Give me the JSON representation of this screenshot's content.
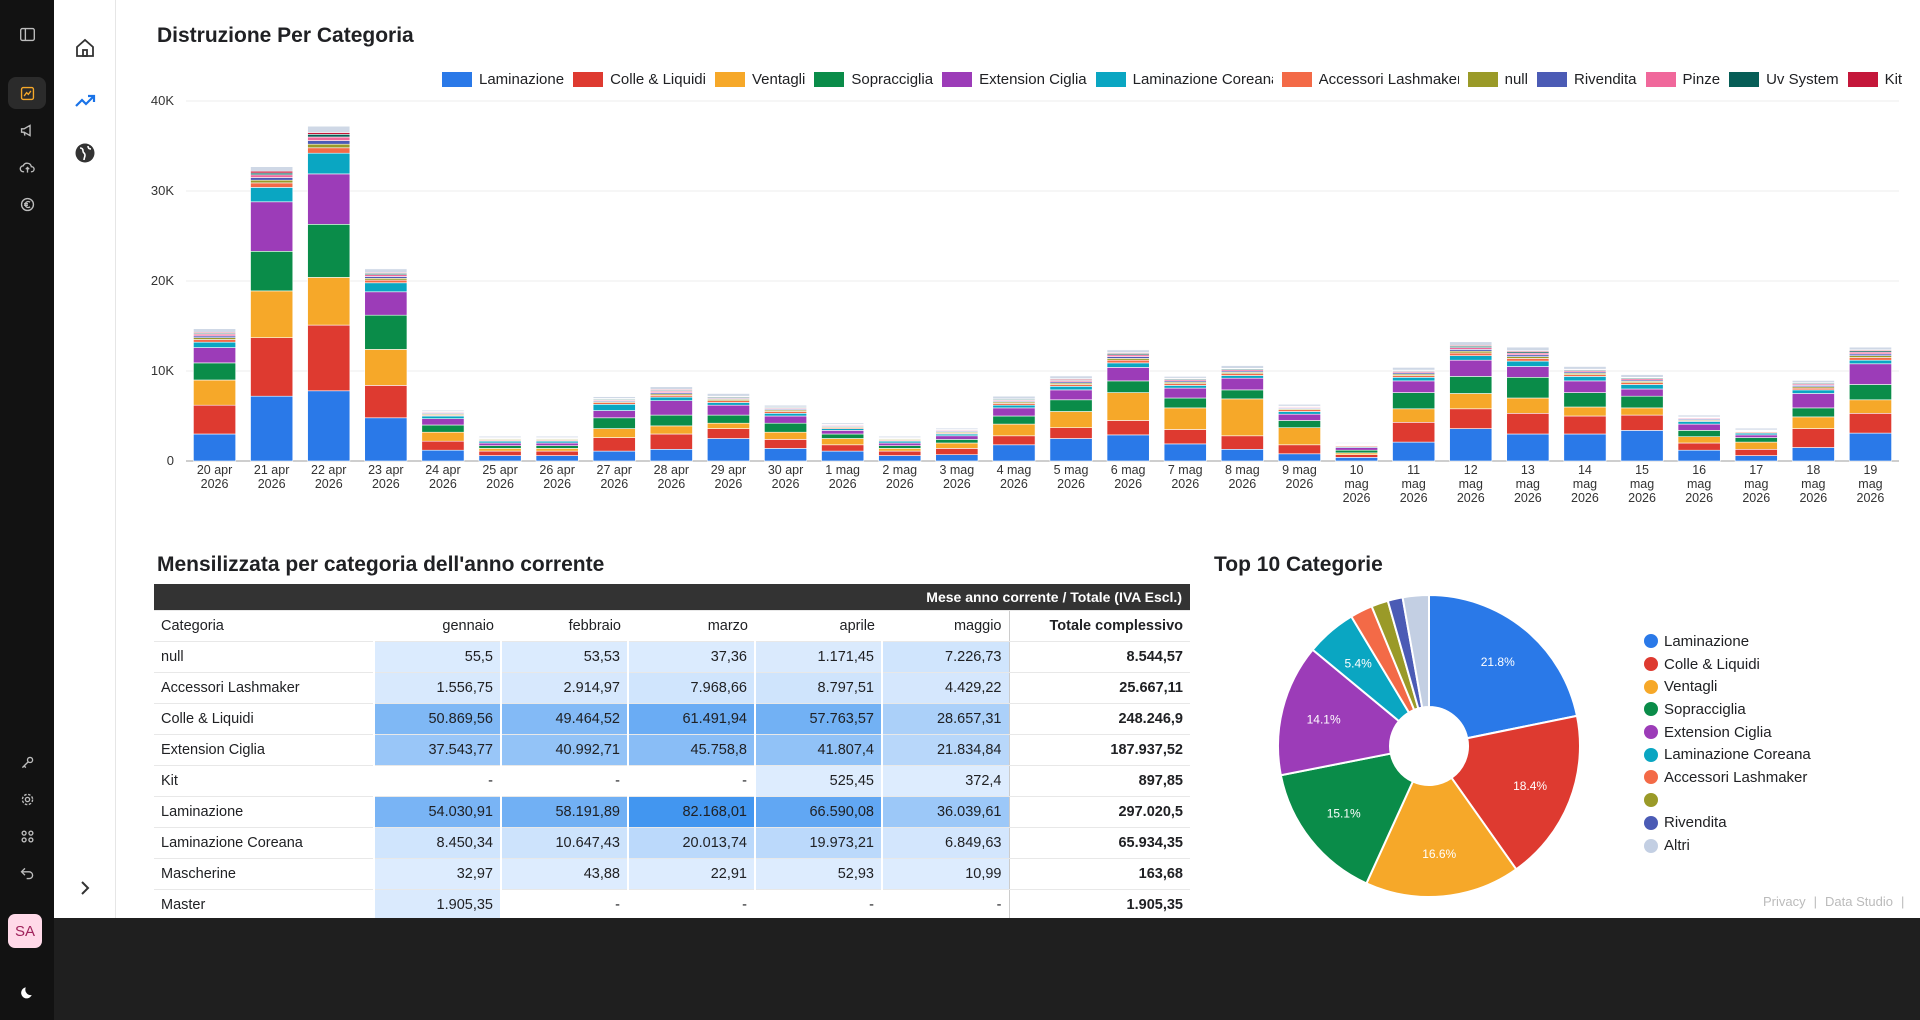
{
  "rail": {
    "avatar": "SA"
  },
  "bar_section": {
    "title": "Distruzione Per Categoria"
  },
  "table_section": {
    "title": "Mensilizzata per categoria dell'anno corrente"
  },
  "pie_section": {
    "title": "Top 10 Categorie"
  },
  "footer": {
    "privacy": "Privacy",
    "separator": "|",
    "studio": "Data Studio"
  },
  "chart_data": [
    {
      "type": "bar",
      "stacked": true,
      "title": "Distruzione Per Categoria",
      "ylim": [
        0,
        40000
      ],
      "yticks": [
        "0",
        "10K",
        "20K",
        "30K",
        "40K"
      ],
      "ytick_values": [
        0,
        10000,
        20000,
        30000,
        40000
      ],
      "grid": true,
      "legend": "top",
      "categories": [
        [
          "20 apr",
          "2026"
        ],
        [
          "21 apr",
          "2026"
        ],
        [
          "22 apr",
          "2026"
        ],
        [
          "23 apr",
          "2026"
        ],
        [
          "24 apr",
          "2026"
        ],
        [
          "25 apr",
          "2026"
        ],
        [
          "26 apr",
          "2026"
        ],
        [
          "27 apr",
          "2026"
        ],
        [
          "28 apr",
          "2026"
        ],
        [
          "29 apr",
          "2026"
        ],
        [
          "30 apr",
          "2026"
        ],
        [
          "1 mag",
          "2026"
        ],
        [
          "2 mag",
          "2026"
        ],
        [
          "3 mag",
          "2026"
        ],
        [
          "4 mag",
          "2026"
        ],
        [
          "5 mag",
          "2026"
        ],
        [
          "6 mag",
          "2026"
        ],
        [
          "7 mag",
          "2026"
        ],
        [
          "8 mag",
          "2026"
        ],
        [
          "9 mag",
          "2026"
        ],
        [
          "10",
          "mag",
          "2026"
        ],
        [
          "11",
          "mag",
          "2026"
        ],
        [
          "12",
          "mag",
          "2026"
        ],
        [
          "13",
          "mag",
          "2026"
        ],
        [
          "14",
          "mag",
          "2026"
        ],
        [
          "15",
          "mag",
          "2026"
        ],
        [
          "16",
          "mag",
          "2026"
        ],
        [
          "17",
          "mag",
          "2026"
        ],
        [
          "18",
          "mag",
          "2026"
        ],
        [
          "19",
          "mag",
          "2026"
        ]
      ],
      "series": [
        {
          "name": "Laminazione",
          "color": "#2a79e8",
          "values": [
            3000,
            7200,
            7800,
            4800,
            1200,
            600,
            600,
            1100,
            1300,
            2500,
            1400,
            1100,
            600,
            700,
            1800,
            2500,
            2900,
            1900,
            1300,
            800,
            400,
            2100,
            3600,
            3000,
            3000,
            3400,
            1200,
            600,
            1500,
            3100
          ]
        },
        {
          "name": "Colle & Liquidi",
          "color": "#de3a30",
          "values": [
            3200,
            6500,
            7300,
            3600,
            1000,
            500,
            500,
            1500,
            1700,
            1100,
            1000,
            700,
            500,
            700,
            1000,
            1200,
            1600,
            1600,
            1500,
            1000,
            300,
            2200,
            2200,
            2300,
            2000,
            1700,
            800,
            700,
            2100,
            2200
          ]
        },
        {
          "name": "Ventagli",
          "color": "#f6a829",
          "values": [
            2800,
            5200,
            5300,
            4000,
            1000,
            300,
            300,
            1000,
            900,
            600,
            800,
            700,
            300,
            600,
            1300,
            1800,
            3100,
            2400,
            4100,
            1900,
            200,
            1500,
            1700,
            1700,
            1000,
            800,
            700,
            800,
            1300,
            1500
          ]
        },
        {
          "name": "Sopracciglia",
          "color": "#0a8c49",
          "values": [
            1900,
            4400,
            5900,
            3800,
            800,
            300,
            300,
            1200,
            1200,
            900,
            1000,
            500,
            300,
            400,
            900,
            1300,
            1300,
            1100,
            1000,
            800,
            300,
            1800,
            1900,
            2300,
            1600,
            1300,
            700,
            500,
            1000,
            1700
          ]
        },
        {
          "name": "Extension Ciglia",
          "color": "#9c3cb8",
          "values": [
            1700,
            5500,
            5600,
            2600,
            700,
            300,
            300,
            800,
            1600,
            1100,
            800,
            400,
            300,
            400,
            900,
            1100,
            1500,
            1100,
            1300,
            700,
            300,
            1300,
            1800,
            1200,
            1300,
            800,
            700,
            300,
            1600,
            2300
          ]
        },
        {
          "name": "Laminazione Coreana",
          "color": "#0aa6c2",
          "values": [
            600,
            1600,
            2300,
            1000,
            300,
            200,
            200,
            700,
            400,
            300,
            300,
            200,
            200,
            200,
            300,
            400,
            500,
            300,
            300,
            300,
            100,
            400,
            500,
            600,
            500,
            500,
            300,
            200,
            400,
            400
          ]
        },
        {
          "name": "Accessori Lashmaker",
          "color": "#f36a47",
          "values": [
            300,
            500,
            600,
            300,
            100,
            100,
            100,
            200,
            200,
            200,
            200,
            100,
            100,
            100,
            200,
            200,
            300,
            200,
            200,
            200,
            100,
            200,
            300,
            300,
            200,
            200,
            100,
            100,
            200,
            300
          ]
        },
        {
          "name": "null",
          "color": "#9a9a28",
          "values": [
            200,
            300,
            400,
            200,
            100,
            100,
            100,
            100,
            150,
            150,
            150,
            100,
            100,
            100,
            150,
            150,
            200,
            150,
            150,
            100,
            50,
            150,
            200,
            200,
            150,
            150,
            100,
            50,
            150,
            200
          ]
        },
        {
          "name": "Rivendita",
          "color": "#4b5bb5",
          "values": [
            200,
            300,
            400,
            200,
            100,
            50,
            50,
            100,
            150,
            100,
            100,
            100,
            50,
            100,
            100,
            150,
            200,
            150,
            150,
            100,
            50,
            150,
            200,
            200,
            150,
            150,
            100,
            50,
            150,
            200
          ]
        },
        {
          "name": "Pinze",
          "color": "#f0689b",
          "values": [
            200,
            300,
            400,
            200,
            100,
            50,
            50,
            100,
            150,
            100,
            100,
            100,
            50,
            100,
            100,
            150,
            200,
            150,
            150,
            100,
            50,
            150,
            200,
            200,
            150,
            150,
            100,
            50,
            150,
            200
          ]
        },
        {
          "name": "Uv System",
          "color": "#075e57",
          "values": [
            100,
            200,
            300,
            150,
            50,
            50,
            50,
            100,
            100,
            100,
            100,
            50,
            50,
            50,
            100,
            100,
            150,
            100,
            100,
            50,
            50,
            100,
            150,
            150,
            100,
            100,
            50,
            50,
            100,
            150
          ]
        },
        {
          "name": "Kit",
          "color": "#c4173a",
          "values": [
            100,
            200,
            200,
            100,
            50,
            50,
            50,
            50,
            100,
            50,
            50,
            50,
            50,
            50,
            50,
            100,
            100,
            50,
            50,
            50,
            50,
            50,
            100,
            100,
            50,
            50,
            50,
            50,
            50,
            100
          ]
        },
        {
          "name": "",
          "color": "#cfd8e6",
          "values": [
            400,
            500,
            700,
            400,
            150,
            150,
            150,
            200,
            300,
            300,
            200,
            150,
            150,
            150,
            300,
            300,
            300,
            200,
            300,
            200,
            100,
            300,
            400,
            400,
            300,
            300,
            200,
            200,
            250,
            300
          ]
        }
      ]
    },
    {
      "type": "table",
      "title": "Mensilizzata per categoria dell'anno corrente",
      "header_group": "Mese anno corrente / Totale (IVA Escl.)",
      "columns": [
        "Categoria",
        "gennaio",
        "febbraio",
        "marzo",
        "aprile",
        "maggio",
        "Totale complessivo"
      ],
      "rows": [
        {
          "cells": [
            "null",
            "55,5",
            "53,53",
            "37,36",
            "1.171,45",
            "7.226,73",
            "8.544,57"
          ],
          "heat": [
            0.05,
            0.05,
            0.05,
            0.06,
            0.12
          ]
        },
        {
          "cells": [
            "Accessori Lashmaker",
            "1.556,75",
            "2.914,97",
            "7.968,66",
            "8.797,51",
            "4.429,22",
            "25.667,11"
          ],
          "heat": [
            0.07,
            0.08,
            0.12,
            0.13,
            0.09
          ]
        },
        {
          "cells": [
            "Colle & Liquidi",
            "50.869,56",
            "49.464,52",
            "61.491,94",
            "57.763,57",
            "28.657,31",
            "248.246,9"
          ],
          "heat": [
            0.62,
            0.6,
            0.75,
            0.7,
            0.35
          ]
        },
        {
          "cells": [
            "Extension Ciglia",
            "37.543,77",
            "40.992,71",
            "45.758,8",
            "41.807,4",
            "21.834,84",
            "187.937,52"
          ],
          "heat": [
            0.46,
            0.5,
            0.56,
            0.51,
            0.27
          ]
        },
        {
          "cells": [
            "Kit",
            "-",
            "-",
            "-",
            "525,45",
            "372,4",
            "897,85"
          ],
          "heat": [
            0,
            0,
            0,
            0.04,
            0.04
          ]
        },
        {
          "cells": [
            "Laminazione",
            "54.030,91",
            "58.191,89",
            "82.168,01",
            "66.590,08",
            "36.039,61",
            "297.020,5"
          ],
          "heat": [
            0.66,
            0.71,
            1,
            0.81,
            0.44
          ]
        },
        {
          "cells": [
            "Laminazione Coreana",
            "8.450,34",
            "10.647,43",
            "20.013,74",
            "19.973,21",
            "6.849,63",
            "65.934,35"
          ],
          "heat": [
            0.12,
            0.14,
            0.25,
            0.25,
            0.1
          ]
        },
        {
          "cells": [
            "Mascherine",
            "32,97",
            "43,88",
            "22,91",
            "52,93",
            "10,99",
            "163,68"
          ],
          "heat": [
            0.04,
            0.04,
            0.04,
            0.04,
            0.04
          ]
        },
        {
          "cells": [
            "Master",
            "1.905,35",
            "-",
            "-",
            "-",
            "-",
            "1.905,35"
          ],
          "heat": [
            0.06,
            0,
            0,
            0,
            0
          ]
        }
      ]
    },
    {
      "type": "pie",
      "donut": true,
      "title": "Top 10 Categorie",
      "legend": "right",
      "slices": [
        {
          "name": "Laminazione",
          "value": 21.8,
          "label": "21.8%",
          "color": "#2a79e8"
        },
        {
          "name": "Colle & Liquidi",
          "value": 18.4,
          "label": "18.4%",
          "color": "#de3a30"
        },
        {
          "name": "Ventagli",
          "value": 16.6,
          "label": "16.6%",
          "color": "#f6a829"
        },
        {
          "name": "Sopracciglia",
          "value": 15.1,
          "label": "15.1%",
          "color": "#0a8c49"
        },
        {
          "name": "Extension Ciglia",
          "value": 14.1,
          "label": "14.1%",
          "color": "#9c3cb8"
        },
        {
          "name": "Laminazione Coreana",
          "value": 5.4,
          "label": "5.4%",
          "color": "#0aa6c2"
        },
        {
          "name": "Accessori Lashmaker",
          "value": 2.4,
          "label": "",
          "color": "#f36a47"
        },
        {
          "name": "",
          "value": 1.8,
          "label": "",
          "color": "#9a9a28"
        },
        {
          "name": "Rivendita",
          "value": 1.6,
          "label": "",
          "color": "#4b5bb5"
        },
        {
          "name": "Altri",
          "value": 2.8,
          "label": "",
          "color": "#c3cfe3"
        }
      ]
    }
  ]
}
